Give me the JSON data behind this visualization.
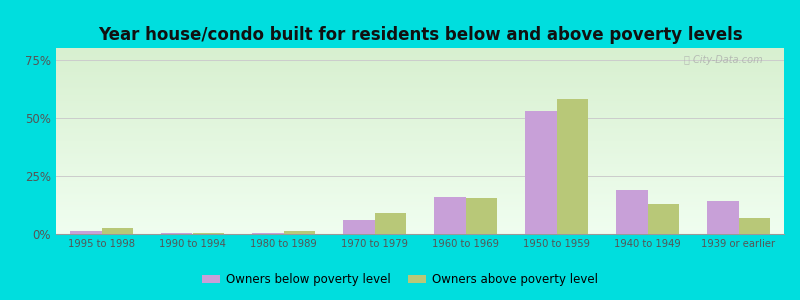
{
  "title": "Year house/condo built for residents below and above poverty levels",
  "categories": [
    "1995 to 1998",
    "1990 to 1994",
    "1980 to 1989",
    "1970 to 1979",
    "1960 to 1969",
    "1950 to 1959",
    "1940 to 1949",
    "1939 or earlier"
  ],
  "below_poverty": [
    1.5,
    0.5,
    0.5,
    6.0,
    16.0,
    53.0,
    19.0,
    14.0
  ],
  "above_poverty": [
    2.5,
    0.5,
    1.5,
    9.0,
    15.5,
    58.0,
    13.0,
    7.0
  ],
  "below_color": "#c8a0d8",
  "above_color": "#b8c878",
  "ylim": [
    0,
    80
  ],
  "yticks": [
    0,
    25,
    50,
    75
  ],
  "ytick_labels": [
    "0%",
    "25%",
    "50%",
    "75%"
  ],
  "legend_below": "Owners below poverty level",
  "legend_above": "Owners above poverty level",
  "outer_bg": "#00dede",
  "title_fontsize": 12,
  "bar_width": 0.35
}
